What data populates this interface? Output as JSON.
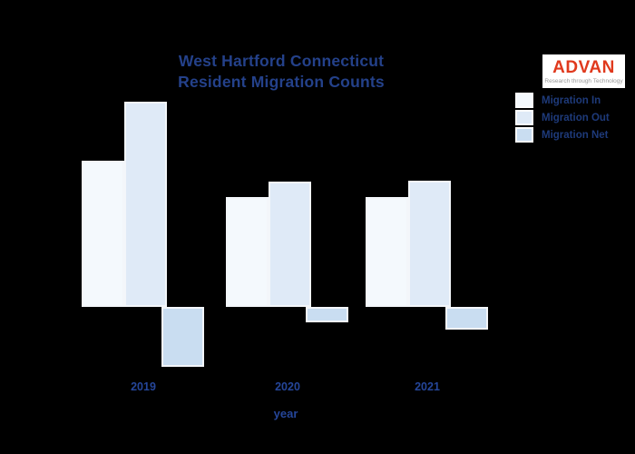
{
  "title": {
    "line1": "West Hartford Connecticut",
    "line2": "Resident Migration Counts"
  },
  "logo": {
    "name": "ADVAN",
    "tagline": "Research through Technology",
    "text_color": "#e0391d",
    "background": "#ffffff"
  },
  "legend": {
    "position": "top-right",
    "items": [
      {
        "label": "Migration In",
        "color": "#f4f9fd"
      },
      {
        "label": "Migration Out",
        "color": "#dfeaf7"
      },
      {
        "label": "Migration Net",
        "color": "#c9ddf1"
      }
    ]
  },
  "x_axis": {
    "label": "year",
    "tick_labels": [
      "2019",
      "2020",
      "2021"
    ]
  },
  "chart_data": {
    "type": "bar",
    "title": "West Hartford Connecticut Resident Migration Counts",
    "categories": [
      "2019",
      "2020",
      "2021"
    ],
    "series": [
      {
        "name": "Migration In",
        "color": "#f4f9fd",
        "values": [
          161,
          121,
          121
        ]
      },
      {
        "name": "Migration Out",
        "color": "#dfeaf7",
        "values": [
          226,
          138,
          139
        ]
      },
      {
        "name": "Migration Net",
        "color": "#c9ddf1",
        "values": [
          -66,
          -17,
          -25
        ]
      }
    ],
    "xlabel": "year",
    "ylabel": "",
    "y_axis_visible": false,
    "grid": false,
    "value_units": "relative units (y axis unlabeled; values estimated from bar pixel heights)",
    "legend_position": "top-right",
    "baseline": 0
  },
  "colors": {
    "page_background": "#000000",
    "title_text": "#24418a",
    "axis_text": "#25469a",
    "legend_text": "#1e3a7a",
    "bar_border": "#f3f6fa"
  }
}
